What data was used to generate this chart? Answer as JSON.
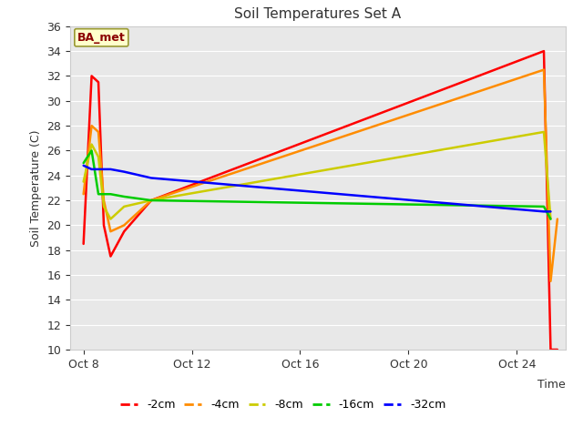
{
  "title": "Soil Temperatures Set A",
  "xlabel": "Time",
  "ylabel": "Soil Temperature (C)",
  "ylim": [
    10,
    36
  ],
  "yticks": [
    10,
    12,
    14,
    16,
    18,
    20,
    22,
    24,
    26,
    28,
    30,
    32,
    34,
    36
  ],
  "annotation_text": "BA_met",
  "annotation_color": "#8B0000",
  "annotation_bg": "#FFFFCC",
  "annotation_border": "#999933",
  "background_color": "#E8E8E8",
  "series": {
    "-2cm": {
      "color": "#FF0000",
      "x": [
        8.0,
        8.3,
        8.55,
        8.75,
        9.0,
        9.5,
        10.5,
        25.0,
        25.25,
        25.5
      ],
      "y": [
        18.5,
        32.0,
        31.5,
        20.0,
        17.5,
        19.5,
        22.0,
        34.0,
        10.0,
        10.0
      ]
    },
    "-4cm": {
      "color": "#FF8C00",
      "x": [
        8.0,
        8.3,
        8.55,
        8.75,
        9.0,
        9.5,
        10.5,
        25.0,
        25.25,
        25.5
      ],
      "y": [
        22.5,
        28.0,
        27.5,
        22.0,
        19.5,
        20.0,
        22.0,
        32.5,
        15.5,
        20.5
      ]
    },
    "-8cm": {
      "color": "#CCCC00",
      "x": [
        8.0,
        8.3,
        8.55,
        8.75,
        9.0,
        9.5,
        10.5,
        25.0,
        25.25
      ],
      "y": [
        23.5,
        26.5,
        25.5,
        21.5,
        20.5,
        21.5,
        22.0,
        27.5,
        20.5
      ]
    },
    "-16cm": {
      "color": "#00CC00",
      "x": [
        8.0,
        8.3,
        8.55,
        8.75,
        9.0,
        9.5,
        10.5,
        25.0,
        25.25
      ],
      "y": [
        25.0,
        26.0,
        22.5,
        22.5,
        22.5,
        22.3,
        22.0,
        21.5,
        20.5
      ]
    },
    "-32cm": {
      "color": "#0000FF",
      "x": [
        8.0,
        8.3,
        8.55,
        8.75,
        9.0,
        9.5,
        10.5,
        25.0,
        25.25
      ],
      "y": [
        24.8,
        24.5,
        24.5,
        24.5,
        24.5,
        24.3,
        23.8,
        21.1,
        21.1
      ]
    }
  },
  "xlim": [
    7.5,
    25.8
  ],
  "xtick_labels": [
    "Oct 8",
    "Oct 12",
    "Oct 16",
    "Oct 20",
    "Oct 24"
  ],
  "xtick_positions": [
    8,
    12,
    16,
    20,
    24
  ],
  "legend_order": [
    "-2cm",
    "-4cm",
    "-8cm",
    "-16cm",
    "-32cm"
  ]
}
